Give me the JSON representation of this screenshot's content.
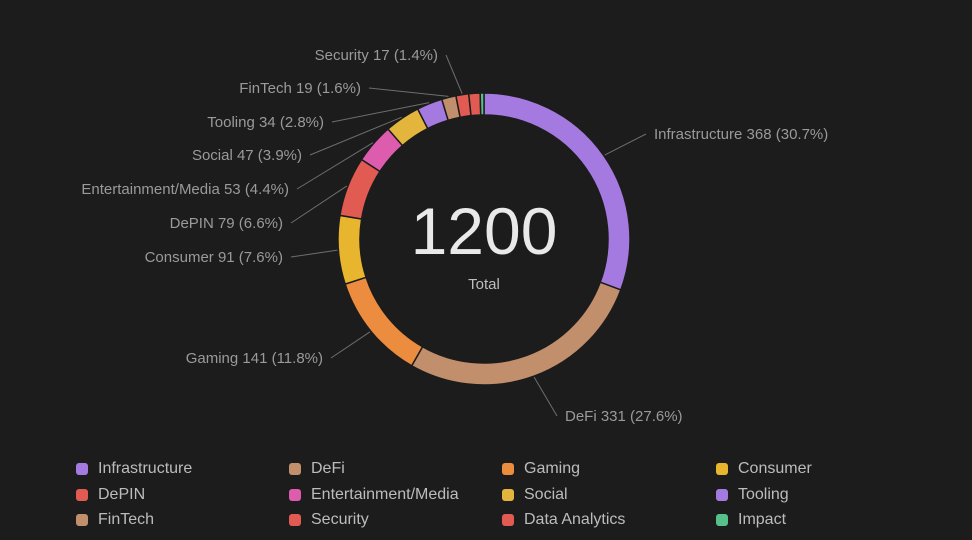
{
  "chart_data": {
    "type": "pie",
    "title": "",
    "center": {
      "value": "1200",
      "label": "Total"
    },
    "slices": [
      {
        "name": "Infrastructure",
        "value": 368,
        "label": "Infrastructure 368 (30.7%)",
        "color": "#a57ae0"
      },
      {
        "name": "DeFi",
        "value": 331,
        "label": "DeFi 331 (27.6%)",
        "color": "#c28f6c"
      },
      {
        "name": "Gaming",
        "value": 141,
        "label": "Gaming 141 (11.8%)",
        "color": "#ec8c3e"
      },
      {
        "name": "Consumer",
        "value": 91,
        "label": "Consumer 91 (7.6%)",
        "color": "#e8b52e"
      },
      {
        "name": "DePIN",
        "value": 79,
        "label": "DePIN 79 (6.6%)",
        "color": "#e15b53"
      },
      {
        "name": "Entertainment/Media",
        "value": 53,
        "label": "Entertainment/Media 53 (4.4%)",
        "color": "#de5cae"
      },
      {
        "name": "Social",
        "value": 47,
        "label": "Social 47 (3.9%)",
        "color": "#e3b53c"
      },
      {
        "name": "Tooling",
        "value": 34,
        "label": "Tooling 34 (2.8%)",
        "color": "#a57ae0"
      },
      {
        "name": "FinTech",
        "value": 19,
        "label": "FinTech 19 (1.6%)",
        "color": "#c28f6c"
      },
      {
        "name": "Security",
        "value": 17,
        "label": "Security 17 (1.4%)",
        "color": "#e15b53"
      },
      {
        "name": "Data Analytics",
        "value": 15,
        "label": "",
        "color": "#e15b53"
      },
      {
        "name": "Impact",
        "value": 5,
        "label": "",
        "color": "#57c08a"
      }
    ],
    "legend": {
      "placement": "bottom",
      "items": [
        {
          "name": "Infrastructure",
          "color": "#a57ae0"
        },
        {
          "name": "DeFi",
          "color": "#c28f6c"
        },
        {
          "name": "Gaming",
          "color": "#ec8c3e"
        },
        {
          "name": "Consumer",
          "color": "#e8b52e"
        },
        {
          "name": "DePIN",
          "color": "#e15b53"
        },
        {
          "name": "Entertainment/Media",
          "color": "#de5cae"
        },
        {
          "name": "Social",
          "color": "#e3b53c"
        },
        {
          "name": "Tooling",
          "color": "#a57ae0"
        },
        {
          "name": "FinTech",
          "color": "#c28f6c"
        },
        {
          "name": "Security",
          "color": "#e15b53"
        },
        {
          "name": "Data Analytics",
          "color": "#e15b53"
        },
        {
          "name": "Impact",
          "color": "#57c08a"
        }
      ]
    }
  }
}
